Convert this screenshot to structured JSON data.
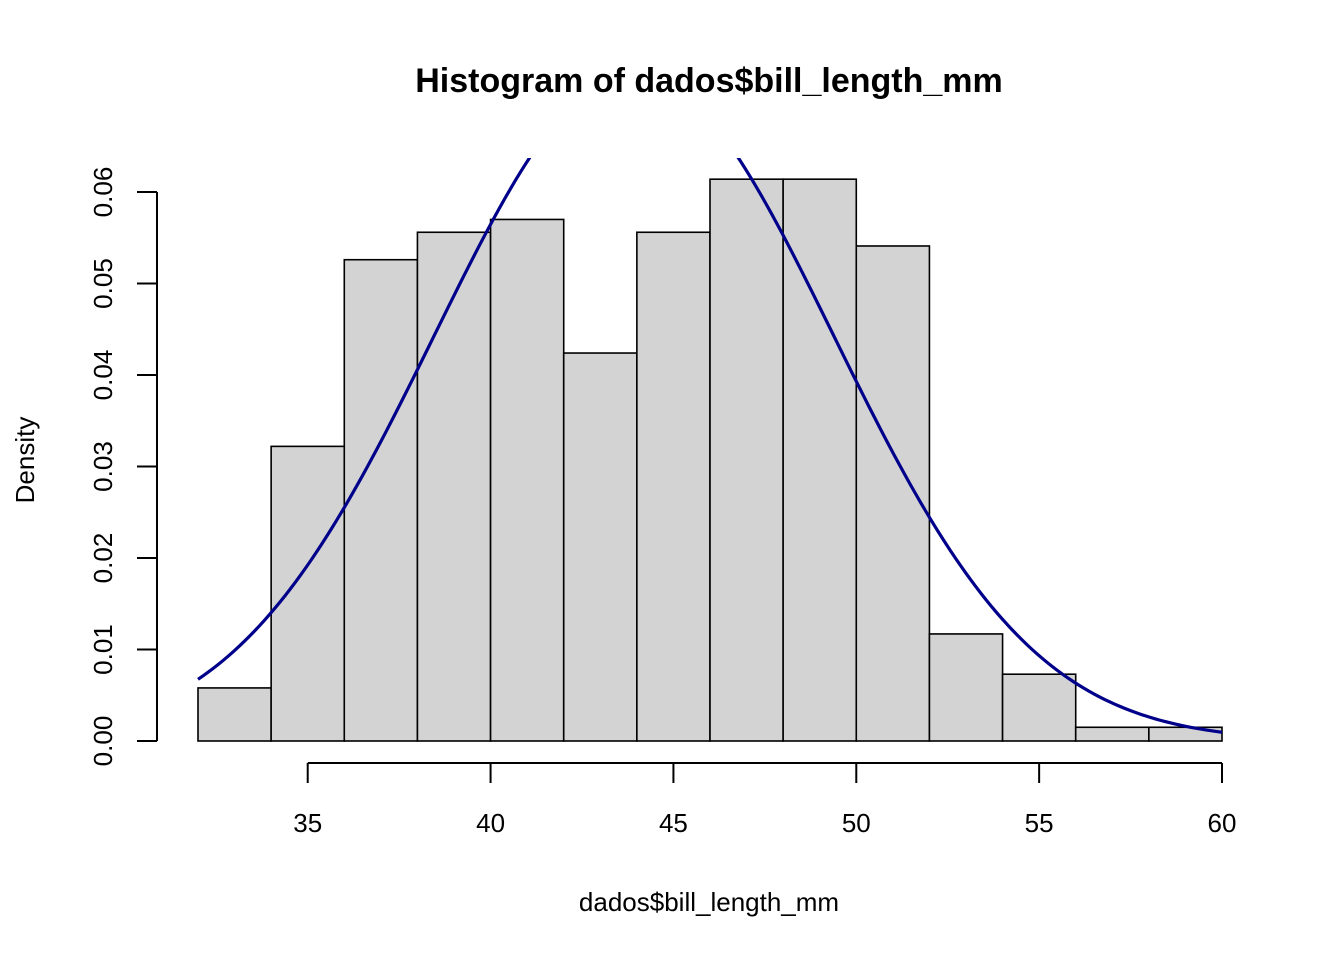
{
  "chart_data": {
    "type": "bar",
    "title": "Histogram of dados$bill_length_mm",
    "xlabel": "dados$bill_length_mm",
    "ylabel": "Density",
    "bins": [
      {
        "from": 32,
        "to": 34,
        "density": 0.0058
      },
      {
        "from": 34,
        "to": 36,
        "density": 0.0322
      },
      {
        "from": 36,
        "to": 38,
        "density": 0.0526
      },
      {
        "from": 38,
        "to": 40,
        "density": 0.0556
      },
      {
        "from": 40,
        "to": 42,
        "density": 0.057
      },
      {
        "from": 42,
        "to": 44,
        "density": 0.0424
      },
      {
        "from": 44,
        "to": 46,
        "density": 0.0556
      },
      {
        "from": 46,
        "to": 48,
        "density": 0.0614
      },
      {
        "from": 48,
        "to": 50,
        "density": 0.0614
      },
      {
        "from": 50,
        "to": 52,
        "density": 0.0541
      },
      {
        "from": 52,
        "to": 54,
        "density": 0.0117
      },
      {
        "from": 54,
        "to": 56,
        "density": 0.0073
      },
      {
        "from": 56,
        "to": 58,
        "density": 0.0015
      },
      {
        "from": 58,
        "to": 60,
        "density": 0.0015
      }
    ],
    "xticks": [
      "35",
      "40",
      "45",
      "50",
      "55",
      "60"
    ],
    "yticks": [
      "0.00",
      "0.01",
      "0.02",
      "0.03",
      "0.04",
      "0.05",
      "0.06"
    ],
    "xlim": [
      32,
      60
    ],
    "ylim": [
      0,
      0.06
    ],
    "overlay_curve": {
      "type": "normal density",
      "mean": 43.92,
      "sd": 5.46
    },
    "colors": {
      "bar_fill": "#d3d3d3",
      "bar_stroke": "#000000",
      "curve": "#00008b"
    }
  }
}
